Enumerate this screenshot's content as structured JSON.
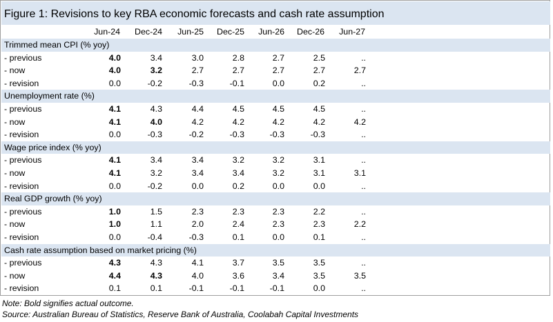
{
  "title": "Figure 1: Revisions to key RBA economic forecasts and cash rate assumption",
  "columns": [
    "Jun-24",
    "Dec-24",
    "Jun-25",
    "Dec-25",
    "Jun-26",
    "Dec-26",
    "Jun-27"
  ],
  "sections": [
    {
      "name": "Trimmed mean CPI (% yoy)",
      "rows": [
        {
          "label": "- previous",
          "values": [
            "4.0",
            "3.4",
            "3.0",
            "2.8",
            "2.7",
            "2.5",
            ".."
          ],
          "bold": [
            0
          ]
        },
        {
          "label": "- now",
          "values": [
            "4.0",
            "3.2",
            "2.7",
            "2.7",
            "2.7",
            "2.7",
            "2.7"
          ],
          "bold": [
            0,
            1
          ]
        },
        {
          "label": "- revision",
          "values": [
            "0.0",
            "-0.2",
            "-0.3",
            "-0.1",
            "0.0",
            "0.2",
            ".."
          ],
          "bold": []
        }
      ]
    },
    {
      "name": "Unemployment rate (%)",
      "rows": [
        {
          "label": "- previous",
          "values": [
            "4.1",
            "4.3",
            "4.4",
            "4.5",
            "4.5",
            "4.5",
            ".."
          ],
          "bold": [
            0
          ]
        },
        {
          "label": "- now",
          "values": [
            "4.1",
            "4.0",
            "4.2",
            "4.2",
            "4.2",
            "4.2",
            "4.2"
          ],
          "bold": [
            0,
            1
          ]
        },
        {
          "label": "- revision",
          "values": [
            "0.0",
            "-0.3",
            "-0.2",
            "-0.3",
            "-0.3",
            "-0.3",
            ".."
          ],
          "bold": []
        }
      ]
    },
    {
      "name": "Wage price index (% yoy)",
      "rows": [
        {
          "label": "- previous",
          "values": [
            "4.1",
            "3.4",
            "3.4",
            "3.2",
            "3.2",
            "3.1",
            ".."
          ],
          "bold": [
            0
          ]
        },
        {
          "label": "- now",
          "values": [
            "4.1",
            "3.2",
            "3.4",
            "3.4",
            "3.2",
            "3.1",
            "3.1"
          ],
          "bold": [
            0
          ]
        },
        {
          "label": "- revision",
          "values": [
            "0.0",
            "-0.2",
            "0.0",
            "0.2",
            "0.0",
            "0.0",
            ".."
          ],
          "bold": []
        }
      ]
    },
    {
      "name": "Real GDP growth (% yoy)",
      "rows": [
        {
          "label": "- previous",
          "values": [
            "1.0",
            "1.5",
            "2.3",
            "2.3",
            "2.3",
            "2.2",
            ".."
          ],
          "bold": [
            0
          ]
        },
        {
          "label": "- now",
          "values": [
            "1.0",
            "1.1",
            "2.0",
            "2.4",
            "2.3",
            "2.3",
            "2.2"
          ],
          "bold": [
            0
          ]
        },
        {
          "label": "- revision",
          "values": [
            "0.0",
            "-0.4",
            "-0.3",
            "0.1",
            "0.0",
            "0.1",
            ".."
          ],
          "bold": []
        }
      ]
    },
    {
      "name": "Cash rate assumption based on market pricing (%)",
      "rows": [
        {
          "label": "- previous",
          "values": [
            "4.3",
            "4.3",
            "4.1",
            "3.7",
            "3.5",
            "3.5",
            ".."
          ],
          "bold": [
            0
          ]
        },
        {
          "label": "- now",
          "values": [
            "4.4",
            "4.3",
            "4.0",
            "3.6",
            "3.4",
            "3.5",
            "3.5"
          ],
          "bold": [
            0,
            1
          ]
        },
        {
          "label": "- revision",
          "values": [
            "0.1",
            "0.1",
            "-0.1",
            "-0.1",
            "-0.1",
            "0.0",
            ".."
          ],
          "bold": []
        }
      ]
    }
  ],
  "note": "Note: Bold signifies actual outcome.",
  "source": "Source: Australian Bureau of Statistics, Reserve Bank of Australia, Coolabah Capital Investments",
  "colors": {
    "header_fill": "#dbe5f1",
    "border": "#9e9e9e"
  }
}
